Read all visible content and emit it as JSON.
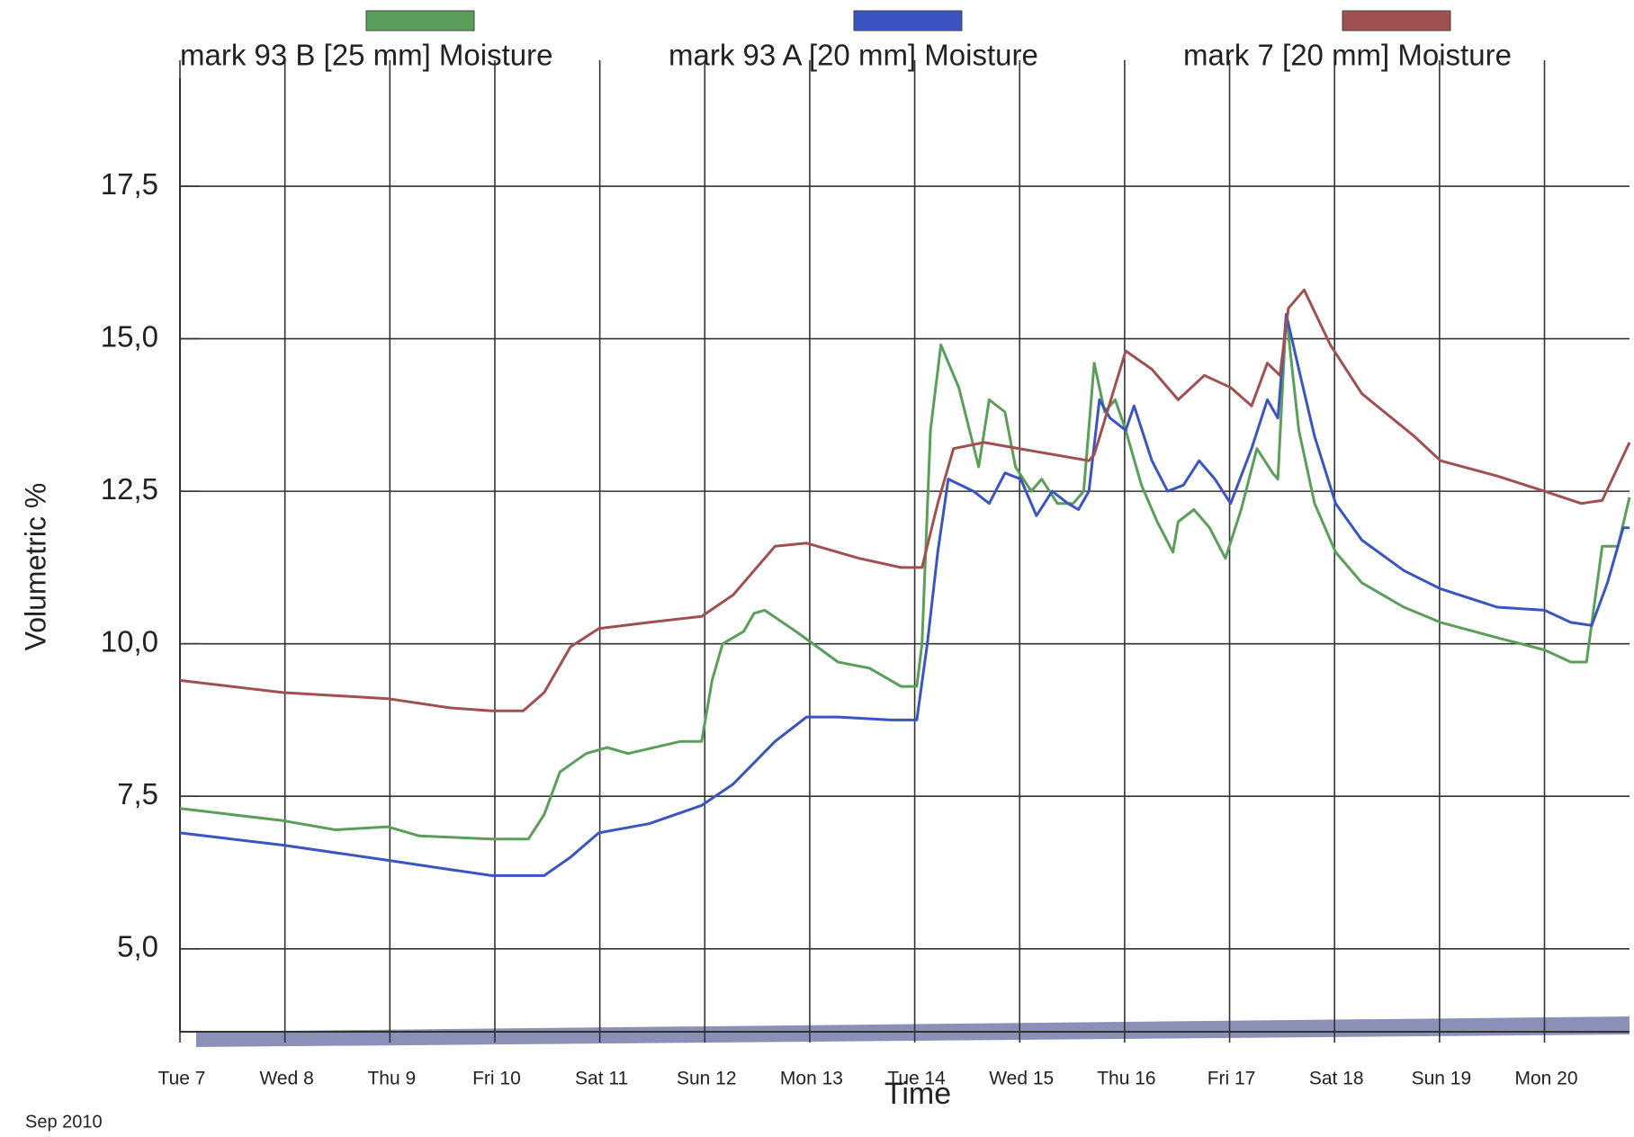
{
  "chart_data": {
    "type": "line",
    "y_axis_label": "Volumetric %",
    "x_axis_label": "Time",
    "date_note": "Sep 2010",
    "xlim": [
      7,
      20.81
    ],
    "xticks": [
      {
        "value": 7,
        "label": "Tue 7"
      },
      {
        "value": 8,
        "label": "Wed 8"
      },
      {
        "value": 9,
        "label": "Thu 9"
      },
      {
        "value": 10,
        "label": "Fri 10"
      },
      {
        "value": 11,
        "label": "Sat 11"
      },
      {
        "value": 12,
        "label": "Sun 12"
      },
      {
        "value": 13,
        "label": "Mon 13"
      },
      {
        "value": 14,
        "label": "Tue 14"
      },
      {
        "value": 15,
        "label": "Wed 15"
      },
      {
        "value": 16,
        "label": "Thu 16"
      },
      {
        "value": 17,
        "label": "Fri 17"
      },
      {
        "value": 18,
        "label": "Sat 18"
      },
      {
        "value": 19,
        "label": "Sun 19"
      },
      {
        "value": 20,
        "label": "Mon 20"
      }
    ],
    "ylim": [
      3.64,
      19.27
    ],
    "yticks": [
      {
        "value": 5,
        "label": "5,0"
      },
      {
        "value": 7.5,
        "label": "7,5"
      },
      {
        "value": 10,
        "label": "10,0"
      },
      {
        "value": 12.5,
        "label": "12,5"
      },
      {
        "value": 15,
        "label": "15,0"
      },
      {
        "value": 17.5,
        "label": "17,5"
      }
    ],
    "grid": true,
    "series": [
      {
        "name": "mark 93 B [25 mm] Moisture",
        "color": "#5a9e5a",
        "x": [
          7.0,
          7.98,
          8.48,
          8.98,
          9.28,
          9.97,
          10.32,
          10.47,
          10.62,
          10.87,
          11.07,
          11.27,
          11.77,
          11.97,
          12.07,
          12.17,
          12.37,
          12.47,
          12.57,
          12.87,
          13.27,
          13.57,
          13.87,
          14.02,
          14.07,
          14.15,
          14.25,
          14.42,
          14.61,
          14.71,
          14.86,
          14.96,
          15.11,
          15.21,
          15.36,
          15.51,
          15.61,
          15.71,
          15.81,
          15.91,
          16.01,
          16.16,
          16.31,
          16.46,
          16.51,
          16.66,
          16.81,
          16.96,
          17.11,
          17.26,
          17.41,
          17.46,
          17.54,
          17.66,
          17.81,
          18.01,
          18.26,
          18.66,
          19.01,
          19.55,
          20.0,
          20.25,
          20.4,
          20.55,
          20.7,
          20.81
        ],
        "values": [
          7.3,
          7.1,
          6.95,
          7.0,
          6.85,
          6.8,
          6.8,
          7.2,
          7.9,
          8.2,
          8.3,
          8.2,
          8.4,
          8.4,
          9.4,
          10.0,
          10.2,
          10.5,
          10.55,
          10.2,
          9.7,
          9.6,
          9.3,
          9.3,
          10.0,
          13.5,
          14.9,
          14.2,
          12.9,
          14.0,
          13.8,
          12.9,
          12.5,
          12.7,
          12.3,
          12.3,
          12.5,
          14.6,
          13.8,
          14.0,
          13.5,
          12.6,
          12.0,
          11.5,
          12.0,
          12.2,
          11.9,
          11.4,
          12.2,
          13.2,
          12.8,
          12.7,
          15.4,
          13.5,
          12.3,
          11.5,
          11.0,
          10.6,
          10.35,
          10.1,
          9.9,
          9.7,
          9.7,
          11.6,
          11.6,
          12.4
        ]
      },
      {
        "name": "mark 93 A [20 mm] Moisture",
        "color": "#3a55c0",
        "x": [
          7.0,
          7.98,
          8.98,
          9.57,
          9.97,
          10.47,
          10.72,
          10.99,
          11.47,
          11.97,
          12.27,
          12.67,
          12.97,
          13.27,
          13.77,
          14.02,
          14.12,
          14.22,
          14.32,
          14.56,
          14.71,
          14.86,
          15.01,
          15.16,
          15.31,
          15.46,
          15.56,
          15.66,
          15.76,
          15.86,
          16.01,
          16.09,
          16.26,
          16.41,
          16.56,
          16.71,
          16.86,
          17.01,
          17.21,
          17.36,
          17.46,
          17.54,
          17.66,
          17.81,
          18.01,
          18.26,
          18.66,
          19.01,
          19.55,
          20.0,
          20.25,
          20.45,
          20.6,
          20.75,
          20.81
        ],
        "values": [
          6.9,
          6.7,
          6.45,
          6.3,
          6.2,
          6.2,
          6.5,
          6.9,
          7.05,
          7.35,
          7.7,
          8.4,
          8.8,
          8.8,
          8.75,
          8.75,
          10.0,
          11.5,
          12.7,
          12.5,
          12.3,
          12.8,
          12.7,
          12.1,
          12.5,
          12.3,
          12.2,
          12.5,
          14.0,
          13.7,
          13.5,
          13.9,
          13.0,
          12.5,
          12.6,
          13.0,
          12.7,
          12.3,
          13.2,
          14.0,
          13.7,
          15.4,
          14.5,
          13.4,
          12.3,
          11.7,
          11.2,
          10.9,
          10.6,
          10.55,
          10.35,
          10.3,
          11.0,
          11.9,
          11.9
        ]
      },
      {
        "name": "mark 7 [20 mm] Moisture",
        "color": "#a05050",
        "x": [
          7.0,
          7.98,
          8.98,
          9.57,
          9.97,
          10.27,
          10.47,
          10.72,
          10.99,
          11.47,
          11.97,
          12.27,
          12.67,
          12.97,
          13.47,
          13.87,
          14.07,
          14.22,
          14.37,
          14.66,
          15.66,
          15.71,
          16.01,
          16.26,
          16.51,
          16.76,
          17.01,
          17.21,
          17.36,
          17.48,
          17.56,
          17.71,
          17.96,
          18.26,
          18.76,
          19.01,
          19.55,
          20.0,
          20.35,
          20.55,
          20.7,
          20.81
        ],
        "values": [
          9.4,
          9.2,
          9.1,
          8.95,
          8.9,
          8.9,
          9.2,
          9.95,
          10.25,
          10.35,
          10.45,
          10.8,
          11.6,
          11.65,
          11.4,
          11.25,
          11.25,
          12.3,
          13.2,
          13.3,
          13.0,
          13.1,
          14.8,
          14.5,
          14.0,
          14.4,
          14.2,
          13.9,
          14.6,
          14.4,
          15.5,
          15.8,
          14.9,
          14.1,
          13.4,
          13.0,
          12.75,
          12.5,
          12.3,
          12.35,
          12.9,
          13.3
        ]
      }
    ]
  }
}
